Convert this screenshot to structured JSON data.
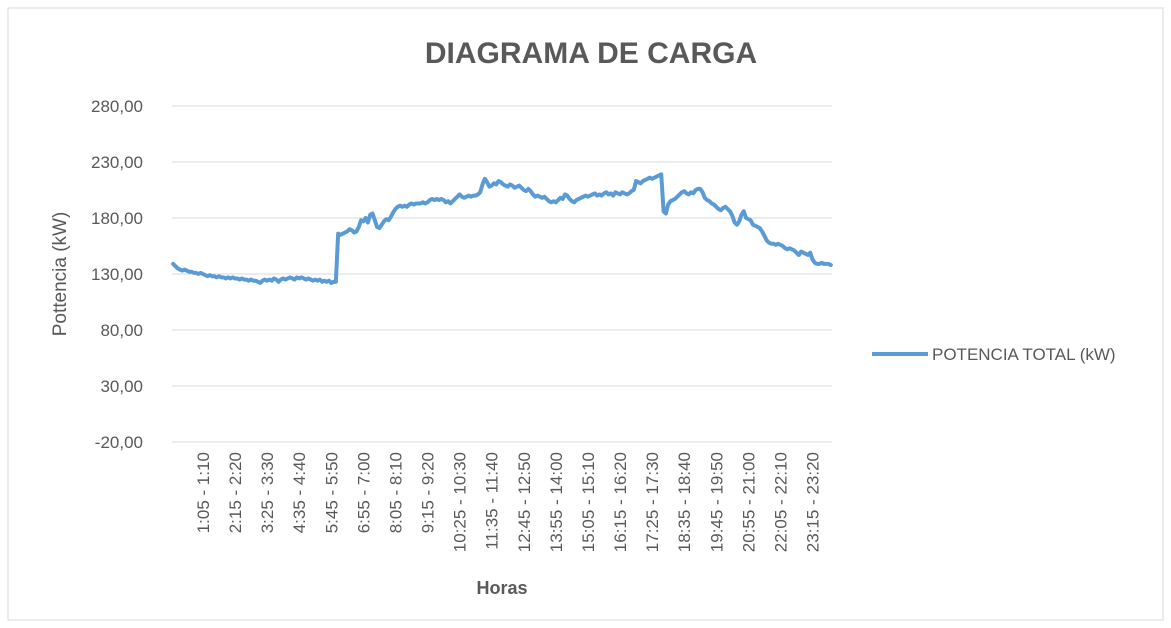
{
  "chart_data": {
    "type": "line",
    "title": "DIAGRAMA DE CARGA",
    "x_label": "Horas",
    "y_label": "Pottencia (kW)",
    "categories": [
      null,
      null,
      null,
      null,
      null,
      null,
      null,
      null,
      null,
      null,
      null,
      null,
      null,
      "1:05 - 1:10",
      null,
      null,
      null,
      null,
      null,
      null,
      null,
      null,
      null,
      null,
      null,
      null,
      null,
      "2:15 - 2:20",
      null,
      null,
      null,
      null,
      null,
      null,
      null,
      null,
      null,
      null,
      null,
      null,
      null,
      "3:25 - 3:30",
      null,
      null,
      null,
      null,
      null,
      null,
      null,
      null,
      null,
      null,
      null,
      null,
      null,
      "4:35 - 4:40",
      null,
      null,
      null,
      null,
      null,
      null,
      null,
      null,
      null,
      null,
      null,
      null,
      null,
      "5:45 - 5:50",
      null,
      null,
      null,
      null,
      null,
      null,
      null,
      null,
      null,
      null,
      null,
      null,
      null,
      "6:55 - 7:00",
      null,
      null,
      null,
      null,
      null,
      null,
      null,
      null,
      null,
      null,
      null,
      null,
      null,
      "8:05 - 8:10",
      null,
      null,
      null,
      null,
      null,
      null,
      null,
      null,
      null,
      null,
      null,
      null,
      null,
      "9:15 - 9:20",
      null,
      null,
      null,
      null,
      null,
      null,
      null,
      null,
      null,
      null,
      null,
      null,
      null,
      "10:25 - 10:30",
      null,
      null,
      null,
      null,
      null,
      null,
      null,
      null,
      null,
      null,
      null,
      null,
      null,
      "11:35 - 11:40",
      null,
      null,
      null,
      null,
      null,
      null,
      null,
      null,
      null,
      null,
      null,
      null,
      null,
      "12:45 - 12:50",
      null,
      null,
      null,
      null,
      null,
      null,
      null,
      null,
      null,
      null,
      null,
      null,
      null,
      "13:55 - 14:00",
      null,
      null,
      null,
      null,
      null,
      null,
      null,
      null,
      null,
      null,
      null,
      null,
      null,
      "15:05 - 15:10",
      null,
      null,
      null,
      null,
      null,
      null,
      null,
      null,
      null,
      null,
      null,
      null,
      null,
      "16:15 - 16:20",
      null,
      null,
      null,
      null,
      null,
      null,
      null,
      null,
      null,
      null,
      null,
      null,
      null,
      "17:25 - 17:30",
      null,
      null,
      null,
      null,
      null,
      null,
      null,
      null,
      null,
      null,
      null,
      null,
      null,
      "18:35 - 18:40",
      null,
      null,
      null,
      null,
      null,
      null,
      null,
      null,
      null,
      null,
      null,
      null,
      null,
      "19:45 - 19:50",
      null,
      null,
      null,
      null,
      null,
      null,
      null,
      null,
      null,
      null,
      null,
      null,
      null,
      "20:55 - 21:00",
      null,
      null,
      null,
      null,
      null,
      null,
      null,
      null,
      null,
      null,
      null,
      null,
      null,
      "22:05 - 22:10",
      null,
      null,
      null,
      null,
      null,
      null,
      null,
      null,
      null,
      null,
      null,
      null,
      null,
      "23:15 - 23:20",
      null,
      null,
      null,
      null,
      null,
      null,
      null,
      null
    ],
    "series": [
      {
        "name": "POTENCIA TOTAL (kW)",
        "color": "#5b9bd5",
        "values": [
          139,
          137,
          135,
          134,
          133,
          134,
          133,
          132,
          132,
          131,
          131,
          130,
          131,
          130,
          129,
          128,
          129,
          128,
          128,
          127,
          128,
          127,
          127,
          126,
          127,
          126,
          127,
          126,
          126,
          125,
          126,
          125,
          125,
          124,
          125,
          124,
          124,
          123,
          122,
          124,
          125,
          124,
          125,
          124,
          126,
          125,
          123,
          125,
          126,
          125,
          126,
          127,
          126,
          125,
          127,
          126,
          127,
          126,
          125,
          126,
          125,
          124,
          125,
          124,
          125,
          123,
          124,
          123,
          124,
          122,
          123,
          123,
          166,
          165,
          166,
          167,
          168,
          170,
          169,
          167,
          168,
          172,
          178,
          177,
          180,
          176,
          183,
          184,
          178,
          172,
          171,
          174,
          177,
          179,
          178,
          181,
          185,
          188,
          190,
          191,
          190,
          191,
          190,
          192,
          193,
          192,
          193,
          193,
          193,
          194,
          193,
          194,
          196,
          197,
          196,
          197,
          196,
          197,
          196,
          194,
          195,
          193,
          195,
          197,
          199,
          201,
          199,
          198,
          199,
          200,
          199,
          200,
          200,
          201,
          203,
          210,
          215,
          212,
          208,
          209,
          211,
          210,
          213,
          212,
          210,
          209,
          208,
          210,
          209,
          207,
          208,
          209,
          207,
          205,
          204,
          206,
          204,
          201,
          199,
          200,
          199,
          198,
          199,
          197,
          195,
          194,
          195,
          194,
          196,
          198,
          197,
          201,
          200,
          197,
          195,
          194,
          196,
          197,
          198,
          199,
          200,
          199,
          200,
          201,
          202,
          200,
          201,
          200,
          202,
          203,
          201,
          202,
          200,
          203,
          202,
          201,
          203,
          202,
          201,
          202,
          204,
          205,
          213,
          212,
          211,
          213,
          214,
          215,
          216,
          215,
          216,
          217,
          218,
          219,
          186,
          184,
          192,
          195,
          196,
          197,
          199,
          201,
          203,
          204,
          202,
          201,
          203,
          202,
          205,
          206,
          206,
          203,
          198,
          196,
          195,
          193,
          192,
          190,
          188,
          187,
          189,
          190,
          188,
          186,
          182,
          176,
          174,
          177,
          183,
          186,
          180,
          179,
          178,
          174,
          173,
          172,
          171,
          168,
          164,
          160,
          158,
          157,
          157,
          156,
          157,
          156,
          155,
          153,
          152,
          153,
          152,
          151,
          149,
          147,
          150,
          149,
          148,
          147,
          149,
          143,
          140,
          139,
          139,
          140,
          139,
          139,
          139,
          138
        ]
      }
    ],
    "ylim": [
      -20,
      280
    ],
    "yticks": [
      {
        "value": -20,
        "label": "-20,00"
      },
      {
        "value": 30,
        "label": "30,00"
      },
      {
        "value": 80,
        "label": "80,00"
      },
      {
        "value": 130,
        "label": "130,00"
      },
      {
        "value": 180,
        "label": "180,00"
      },
      {
        "value": 230,
        "label": "230,00"
      },
      {
        "value": 280,
        "label": "280,00"
      }
    ],
    "grid": true,
    "legend": "right"
  }
}
